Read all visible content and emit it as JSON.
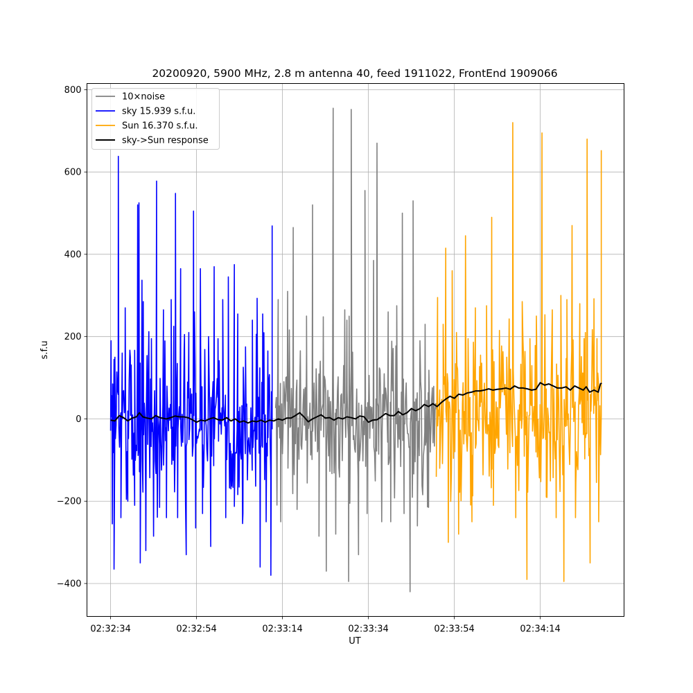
{
  "chart_data": {
    "type": "line",
    "title": "20200920, 5900 MHz, 2.8 m antenna 40, feed 1911022, FrontEnd 1909066",
    "xlabel": "UT",
    "ylabel": "s.f.u",
    "x_ticks": [
      "02:32:34",
      "02:32:54",
      "02:33:14",
      "02:33:34",
      "02:33:54",
      "02:34:14"
    ],
    "x_tick_seconds": [
      0,
      20,
      40,
      60,
      80,
      100
    ],
    "x_range_seconds": [
      -5.5,
      119.5
    ],
    "y_ticks": [
      -400,
      -200,
      0,
      200,
      400,
      600,
      800
    ],
    "ylim": [
      -480,
      815
    ],
    "grid": true,
    "legend_position": "top-left",
    "legend": [
      "10×noise",
      "sky 15.939 s.f.u.",
      "Sun 16.370 s.f.u.",
      "sky->Sun response"
    ],
    "series": [
      {
        "name": "10×noise",
        "color": "#808080",
        "x_start": 38.4,
        "x_end": 75.9,
        "noise_std": 115,
        "spikes": [
          [
            39.0,
            290
          ],
          [
            39.6,
            -250
          ],
          [
            41.2,
            310
          ],
          [
            42.5,
            465
          ],
          [
            43.4,
            -220
          ],
          [
            45.6,
            250
          ],
          [
            47.0,
            520
          ],
          [
            48.5,
            -285
          ],
          [
            49.5,
            248
          ],
          [
            50.2,
            -370
          ],
          [
            51.8,
            755
          ],
          [
            52.4,
            -280
          ],
          [
            54.5,
            265
          ],
          [
            55.0,
            240
          ],
          [
            55.4,
            -395
          ],
          [
            56.0,
            752
          ],
          [
            57.7,
            -330
          ],
          [
            59.2,
            555
          ],
          [
            59.7,
            -230
          ],
          [
            61.2,
            385
          ],
          [
            62.0,
            670
          ],
          [
            63.1,
            -250
          ],
          [
            64.6,
            260
          ],
          [
            65.2,
            -250
          ],
          [
            66.6,
            275
          ],
          [
            67.9,
            500
          ],
          [
            68.3,
            -230
          ],
          [
            69.7,
            -420
          ],
          [
            70.4,
            530
          ],
          [
            71.4,
            -260
          ],
          [
            72.0,
            190
          ],
          [
            73.2,
            230
          ],
          [
            74.0,
            -215
          ]
        ]
      },
      {
        "name": "sky 15.939 s.f.u.",
        "color": "#0000ff",
        "x_start": 0.0,
        "x_end": 37.6,
        "noise_std": 125,
        "spikes": [
          [
            0.1,
            190
          ],
          [
            0.4,
            -255
          ],
          [
            0.8,
            -365
          ],
          [
            1.0,
            150
          ],
          [
            1.8,
            638
          ],
          [
            2.4,
            -240
          ],
          [
            2.7,
            160
          ],
          [
            3.4,
            270
          ],
          [
            4.0,
            -200
          ],
          [
            4.6,
            150
          ],
          [
            5.6,
            -210
          ],
          [
            6.3,
            520
          ],
          [
            6.6,
            525
          ],
          [
            6.9,
            -350
          ],
          [
            7.3,
            337
          ],
          [
            7.6,
            285
          ],
          [
            8.2,
            -320
          ],
          [
            8.9,
            212
          ],
          [
            9.5,
            195
          ],
          [
            10.0,
            -285
          ],
          [
            10.7,
            578
          ],
          [
            11.4,
            -215
          ],
          [
            12.3,
            265
          ],
          [
            13.0,
            -240
          ],
          [
            14.1,
            290
          ],
          [
            14.7,
            225
          ],
          [
            15.1,
            548
          ],
          [
            15.6,
            -240
          ],
          [
            16.3,
            365
          ],
          [
            17.2,
            205
          ],
          [
            17.6,
            -330
          ],
          [
            18.2,
            210
          ],
          [
            19.3,
            505
          ],
          [
            19.8,
            -265
          ],
          [
            20.9,
            365
          ],
          [
            21.4,
            -230
          ],
          [
            22.8,
            200
          ],
          [
            23.3,
            -310
          ],
          [
            24.1,
            370
          ],
          [
            25.0,
            195
          ],
          [
            26.1,
            290
          ],
          [
            26.8,
            -240
          ],
          [
            27.4,
            345
          ],
          [
            28.0,
            -170
          ],
          [
            28.8,
            375
          ],
          [
            29.6,
            255
          ],
          [
            30.8,
            -230
          ],
          [
            31.4,
            175
          ],
          [
            33.0,
            240
          ],
          [
            34.1,
            293
          ],
          [
            34.8,
            -360
          ],
          [
            35.4,
            255
          ],
          [
            36.2,
            -250
          ],
          [
            36.6,
            165
          ],
          [
            37.3,
            -380
          ],
          [
            37.6,
            470
          ]
        ]
      },
      {
        "name": "Sun 16.370 s.f.u.",
        "color": "#ffa500",
        "x_start": 75.8,
        "x_end": 114.3,
        "noise_std": 130,
        "spikes": [
          [
            76.1,
            295
          ],
          [
            76.6,
            -120
          ],
          [
            77.4,
            230
          ],
          [
            78.0,
            415
          ],
          [
            78.6,
            -300
          ],
          [
            79.5,
            360
          ],
          [
            80.5,
            210
          ],
          [
            81.0,
            -280
          ],
          [
            82.6,
            445
          ],
          [
            83.2,
            195
          ],
          [
            84.1,
            -250
          ],
          [
            84.9,
            270
          ],
          [
            86.1,
            155
          ],
          [
            87.5,
            275
          ],
          [
            88.7,
            490
          ],
          [
            89.1,
            -210
          ],
          [
            90.5,
            215
          ],
          [
            92.2,
            150
          ],
          [
            93.6,
            720
          ],
          [
            94.3,
            -240
          ],
          [
            95.8,
            285
          ],
          [
            96.5,
            125
          ],
          [
            96.9,
            -390
          ],
          [
            97.6,
            195
          ],
          [
            99.1,
            250
          ],
          [
            100.4,
            695
          ],
          [
            101.4,
            -190
          ],
          [
            102.8,
            265
          ],
          [
            103.7,
            -240
          ],
          [
            104.8,
            300
          ],
          [
            105.5,
            -395
          ],
          [
            106.2,
            290
          ],
          [
            107.4,
            470
          ],
          [
            108.2,
            -240
          ],
          [
            109.2,
            280
          ],
          [
            110.5,
            210
          ],
          [
            110.9,
            680
          ],
          [
            111.6,
            -350
          ],
          [
            112.5,
            292
          ],
          [
            113.2,
            195
          ],
          [
            113.6,
            -250
          ],
          [
            114.2,
            653
          ]
        ]
      },
      {
        "name": "sky->Sun response",
        "color": "#000000",
        "x_start": 0.0,
        "x_end": 114.3,
        "points": [
          [
            0.0,
            -3
          ],
          [
            1.0,
            -5
          ],
          [
            2.0,
            8
          ],
          [
            3.0,
            3
          ],
          [
            4.0,
            -5
          ],
          [
            5.0,
            2
          ],
          [
            6.0,
            5
          ],
          [
            6.7,
            15
          ],
          [
            7.5,
            5
          ],
          [
            8.5,
            2
          ],
          [
            9.5,
            0
          ],
          [
            10.5,
            8
          ],
          [
            11.5,
            3
          ],
          [
            13.0,
            0
          ],
          [
            14.0,
            3
          ],
          [
            15.0,
            7
          ],
          [
            16.0,
            5
          ],
          [
            17.0,
            5
          ],
          [
            18.0,
            3
          ],
          [
            19.0,
            -2
          ],
          [
            20.0,
            -8
          ],
          [
            21.0,
            -3
          ],
          [
            22.0,
            -5
          ],
          [
            23.0,
            0
          ],
          [
            24.0,
            3
          ],
          [
            25.0,
            -2
          ],
          [
            26.0,
            -3
          ],
          [
            27.0,
            3
          ],
          [
            28.0,
            -5
          ],
          [
            29.0,
            0
          ],
          [
            30.0,
            -8
          ],
          [
            31.0,
            -5
          ],
          [
            32.0,
            -10
          ],
          [
            33.0,
            -5
          ],
          [
            34.0,
            -7
          ],
          [
            35.0,
            -3
          ],
          [
            36.0,
            -8
          ],
          [
            37.0,
            -3
          ],
          [
            38.0,
            -5
          ],
          [
            39.0,
            0
          ],
          [
            40.0,
            -3
          ],
          [
            41.0,
            2
          ],
          [
            42.0,
            2
          ],
          [
            43.0,
            8
          ],
          [
            44.0,
            15
          ],
          [
            45.0,
            5
          ],
          [
            46.0,
            -7
          ],
          [
            47.0,
            0
          ],
          [
            48.0,
            5
          ],
          [
            49.0,
            10
          ],
          [
            50.0,
            2
          ],
          [
            51.0,
            3
          ],
          [
            52.0,
            -3
          ],
          [
            53.0,
            3
          ],
          [
            54.0,
            0
          ],
          [
            55.0,
            5
          ],
          [
            56.0,
            3
          ],
          [
            57.0,
            0
          ],
          [
            58.0,
            7
          ],
          [
            59.0,
            5
          ],
          [
            60.0,
            -8
          ],
          [
            61.0,
            -3
          ],
          [
            62.0,
            -2
          ],
          [
            63.0,
            5
          ],
          [
            64.0,
            13
          ],
          [
            65.0,
            8
          ],
          [
            66.0,
            8
          ],
          [
            67.0,
            18
          ],
          [
            68.0,
            10
          ],
          [
            69.0,
            15
          ],
          [
            70.0,
            25
          ],
          [
            71.0,
            20
          ],
          [
            72.0,
            25
          ],
          [
            73.0,
            35
          ],
          [
            74.0,
            30
          ],
          [
            75.0,
            37
          ],
          [
            76.0,
            30
          ],
          [
            77.0,
            40
          ],
          [
            78.0,
            48
          ],
          [
            79.0,
            55
          ],
          [
            80.0,
            50
          ],
          [
            81.0,
            60
          ],
          [
            82.0,
            58
          ],
          [
            83.0,
            63
          ],
          [
            84.0,
            65
          ],
          [
            85.0,
            68
          ],
          [
            86.0,
            68
          ],
          [
            87.0,
            70
          ],
          [
            88.0,
            73
          ],
          [
            89.0,
            70
          ],
          [
            90.0,
            72
          ],
          [
            91.0,
            73
          ],
          [
            92.0,
            75
          ],
          [
            93.0,
            72
          ],
          [
            94.0,
            80
          ],
          [
            95.0,
            75
          ],
          [
            96.0,
            75
          ],
          [
            97.0,
            73
          ],
          [
            98.0,
            70
          ],
          [
            99.0,
            72
          ],
          [
            100.0,
            88
          ],
          [
            101.0,
            82
          ],
          [
            102.0,
            85
          ],
          [
            103.0,
            80
          ],
          [
            104.0,
            75
          ],
          [
            105.0,
            75
          ],
          [
            106.0,
            78
          ],
          [
            107.0,
            70
          ],
          [
            108.0,
            80
          ],
          [
            109.0,
            75
          ],
          [
            110.0,
            70
          ],
          [
            110.7,
            78
          ],
          [
            111.5,
            65
          ],
          [
            112.5,
            70
          ],
          [
            113.5,
            65
          ],
          [
            114.0,
            85
          ],
          [
            114.3,
            87
          ]
        ]
      }
    ]
  }
}
